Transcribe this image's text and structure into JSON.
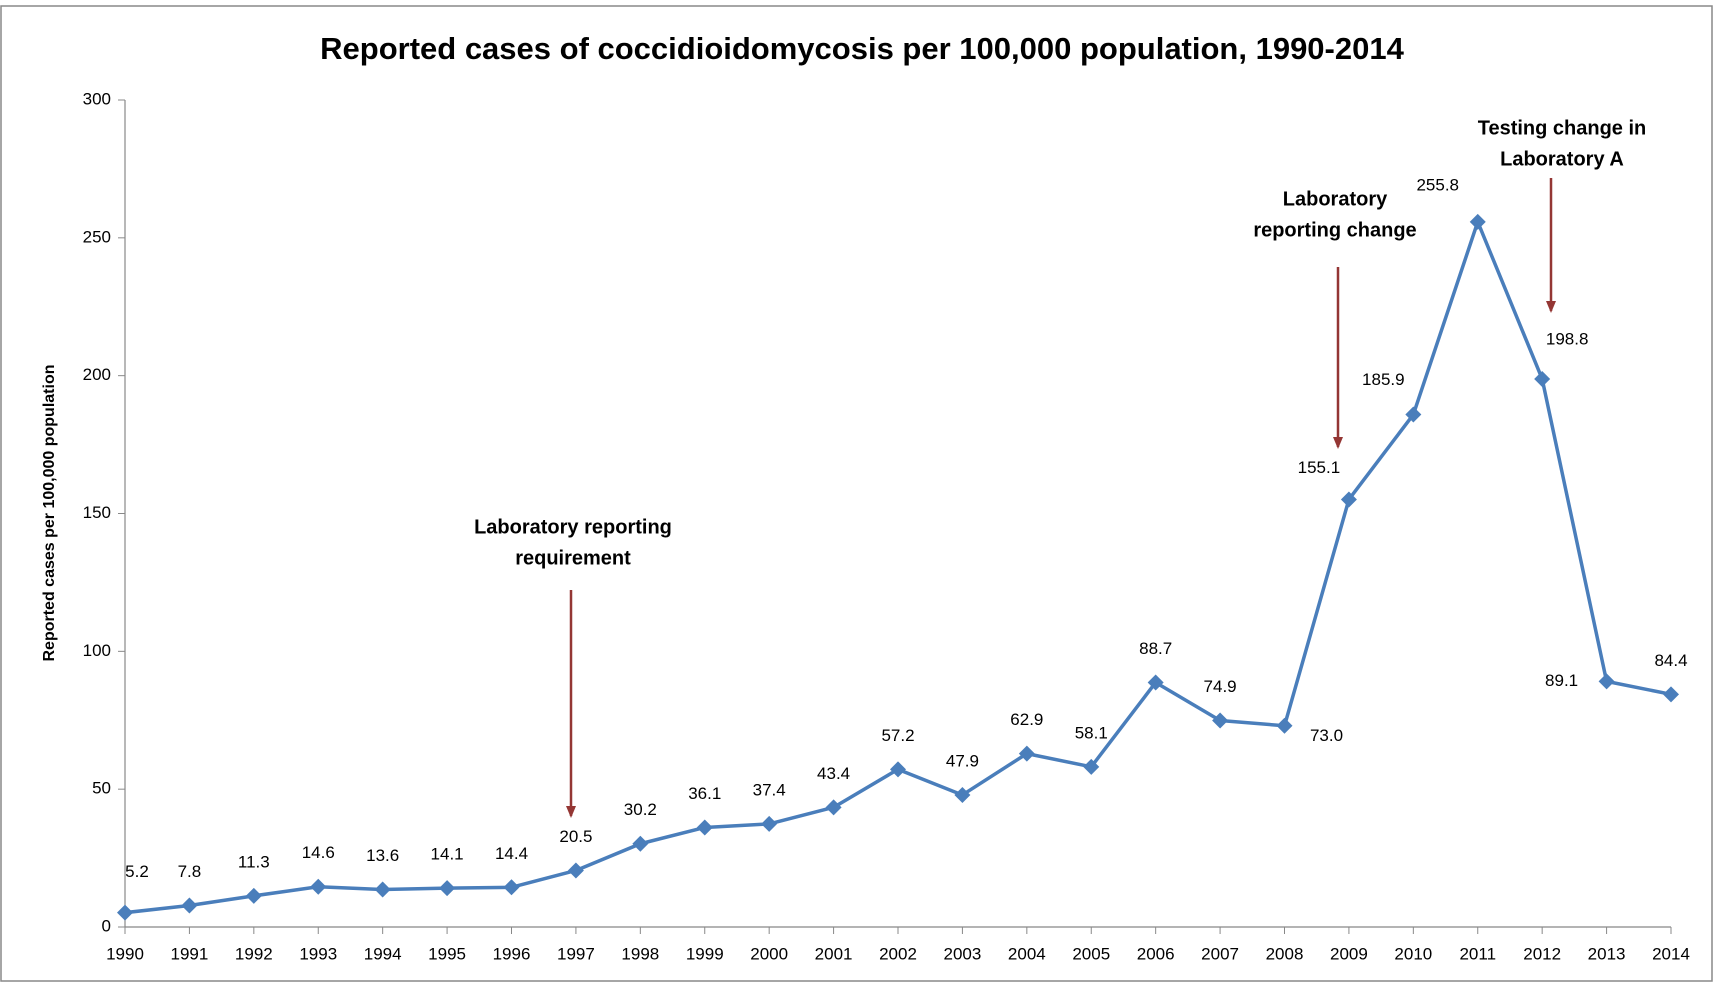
{
  "chart_data": {
    "type": "line",
    "title": "Reported cases of coccidioidomycosis per 100,000 population, 1990-2014",
    "y_label": "Reported cases per 100,000 population",
    "x": [
      1990,
      1991,
      1992,
      1993,
      1994,
      1995,
      1996,
      1997,
      1998,
      1999,
      2000,
      2001,
      2002,
      2003,
      2004,
      2005,
      2006,
      2007,
      2008,
      2009,
      2010,
      2011,
      2012,
      2013,
      2014
    ],
    "xlim": [
      1990,
      2014
    ],
    "xticks": [
      1990,
      1991,
      1992,
      1993,
      1994,
      1995,
      1996,
      1997,
      1998,
      1999,
      2000,
      2001,
      2002,
      2003,
      2004,
      2005,
      2006,
      2007,
      2008,
      2009,
      2010,
      2011,
      2012,
      2013,
      2014
    ],
    "series": [
      {
        "color": "#4a7ebb",
        "values": [
          5.2,
          7.8,
          11.3,
          14.6,
          13.6,
          14.1,
          14.4,
          20.5,
          30.2,
          36.1,
          37.4,
          43.4,
          57.2,
          47.9,
          62.9,
          58.1,
          88.7,
          74.9,
          73.0,
          155.1,
          185.9,
          255.8,
          198.8,
          89.1,
          84.4
        ],
        "value_labels": [
          "5.2",
          "7.8",
          "11.3",
          "14.6",
          "13.6",
          "14.1",
          "14.4",
          "20.5",
          "30.2",
          "36.1",
          "37.4",
          "43.4",
          "57.2",
          "47.9",
          "62.9",
          "58.1",
          "88.7",
          "74.9",
          "73.0",
          "155.1",
          "185.9",
          "255.8",
          "198.8",
          "89.1",
          "84.4"
        ]
      }
    ],
    "ylim": [
      0,
      300
    ],
    "yticks": [
      0,
      50,
      100,
      150,
      200,
      250,
      300
    ],
    "annotations": [
      {
        "lines": [
          "Laboratory reporting",
          "requirement"
        ],
        "color": "#943634"
      },
      {
        "lines": [
          "Laboratory",
          "reporting change"
        ],
        "color": "#943634"
      },
      {
        "lines": [
          "Testing change in",
          "Laboratory A"
        ],
        "color": "#943634"
      }
    ]
  }
}
